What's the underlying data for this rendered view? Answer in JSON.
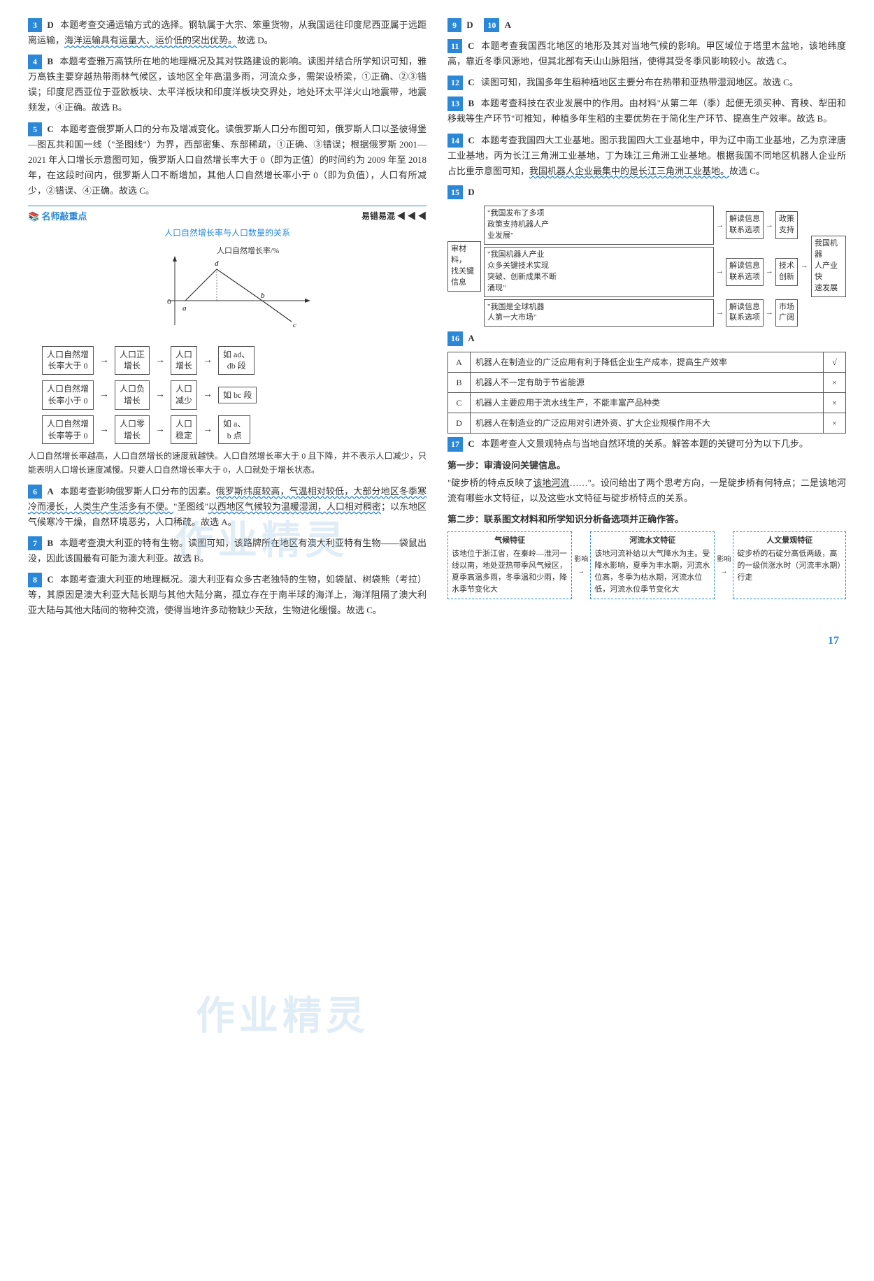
{
  "pageNumber": "17",
  "watermark": "作业精灵",
  "left": {
    "q3": {
      "num": "3",
      "ans": "D",
      "txt": "本题考查交通运输方式的选择。钢轨属于大宗、笨重货物，从我国运往印度尼西亚属于远距离运输，",
      "wavy": "海洋运输具有运量大、运价低的突出优势。",
      "tail": "故选 D。"
    },
    "q4": {
      "num": "4",
      "ans": "B",
      "txt": "本题考查雅万高铁所在地的地理概况及其对铁路建设的影响。读图并结合所学知识可知，雅万高铁主要穿越热带雨林气候区，该地区全年高温多雨，河流众多，需架设桥梁，①正确、②③错误；印度尼西亚位于亚欧板块、太平洋板块和印度洋板块交界处，地处环太平洋火山地震带，地震频发，④正确。故选 B。"
    },
    "q5": {
      "num": "5",
      "ans": "C",
      "txt": "本题考查俄罗斯人口的分布及增减变化。读俄罗斯人口分布图可知，俄罗斯人口以圣彼得堡—图瓦共和国一线（\"圣图线\"）为界，西部密集、东部稀疏，①正确、③错误；根据俄罗斯 2001—2021 年人口增长示意图可知，俄罗斯人口自然增长率大于 0（即为正值）的时间约为 2009 年至 2018 年，在这段时间内，俄罗斯人口不断增加，其他人口自然增长率小于 0（即为负值），人口有所减少，②错误、④正确。故选 C。"
    },
    "kp": {
      "icon": "📚",
      "title": "名师敲重点",
      "tag": "易错易混 ◀ ◀ ◀",
      "subtitle": "人口自然增长率与人口数量的关系",
      "ylabel": "人口自然增长率/%",
      "points": [
        "a",
        "b",
        "c",
        "d"
      ],
      "flowRows": [
        {
          "c1": "人口自然增\n长率大于 0",
          "c2": "人口正\n增长",
          "c3": "人口\n增长",
          "c4": "如 ad、\ndb 段"
        },
        {
          "c1": "人口自然增\n长率小于 0",
          "c2": "人口负\n增长",
          "c3": "人口\n减少",
          "c4": "如 bc 段"
        },
        {
          "c1": "人口自然增\n长率等于 0",
          "c2": "人口零\n增长",
          "c3": "人口\n稳定",
          "c4": "如 a、\nb 点"
        }
      ],
      "note": "人口自然增长率越高，人口自然增长的速度就越快。人口自然增长率大于 0 且下降，并不表示人口减少，只能表明人口增长速度减慢。只要人口自然增长率大于 0，人口就处于增长状态。"
    },
    "q6": {
      "num": "6",
      "ans": "A",
      "txt": "本题考查影响俄罗斯人口分布的因素。",
      "wavy1": "俄罗斯纬度较高，气温相对较低，大部分地区冬季寒冷而漫长，人类生产生活多有不便。",
      "mid": "\"圣图线\"",
      "wavy2": "以西地区气候较为温暖湿润，人口相对稠密",
      "tail": "；以东地区气候寒冷干燥，自然环境恶劣，人口稀疏。故选 A。"
    },
    "q7": {
      "num": "7",
      "ans": "B",
      "txt": "本题考查澳大利亚的特有生物。读图可知，该路牌所在地区有澳大利亚特有生物——袋鼠出没，因此该国最有可能为澳大利亚。故选 B。"
    },
    "q8": {
      "num": "8",
      "ans": "C",
      "txt": "本题考查澳大利亚的地理概况。澳大利亚有众多古老独特的生物，如袋鼠、树袋熊（考拉）等，其原因是澳大利亚大陆长期与其他大陆分离，孤立存在于南半球的海洋上，海洋阻隔了澳大利亚大陆与其他大陆间的物种交流，使得当地许多动物缺少天敌，生物进化缓慢。故选 C。"
    }
  },
  "right": {
    "q9": {
      "num": "9",
      "ans": "D"
    },
    "q10": {
      "num": "10",
      "ans": "A"
    },
    "q11": {
      "num": "11",
      "ans": "C",
      "txt": "本题考查我国西北地区的地形及其对当地气候的影响。甲区域位于塔里木盆地，该地纬度高，靠近冬季风源地，但其北部有天山山脉阻挡，使得其受冬季风影响较小。故选 C。"
    },
    "q12": {
      "num": "12",
      "ans": "C",
      "txt": "读图可知，我国多年生稻种植地区主要分布在热带和亚热带湿润地区。故选 C。"
    },
    "q13": {
      "num": "13",
      "ans": "B",
      "txt": "本题考查科技在农业发展中的作用。由材料\"从第二年（季）起便无须买种、育秧、犁田和移栽等生产环节\"可推知，种植多年生稻的主要优势在于简化生产环节、提高生产效率。故选 B。"
    },
    "q14": {
      "num": "14",
      "ans": "C",
      "txt": "本题考查我国四大工业基地。图示我国四大工业基地中，甲为辽中南工业基地，乙为京津唐工业基地，丙为长江三角洲工业基地，丁为珠江三角洲工业基地。根据我国不同地区机器人企业所占比重示意图可知，",
      "wavy": "我国机器人企业最集中的是长江三角洲工业基地。",
      "tail": "故选 C。"
    },
    "q15": {
      "num": "15",
      "ans": "D"
    },
    "diagram15": {
      "leftBox": "审材料，\n找关键\n信息",
      "rows": [
        {
          "quote": "\"我国发布了多项\n政策支持机器人产\n业发展\"",
          "mid": "解读信息\n联系选项",
          "r1": "政策\n支持"
        },
        {
          "quote": "\"我国机器人产业\n众多关键技术实现\n突破、创新成果不断\n涌现\"",
          "mid": "解读信息\n联系选项",
          "r1": "技术\n创新"
        },
        {
          "quote": "\"我国是全球机器\n人第一大市场\"",
          "mid": "解读信息\n联系选项",
          "r1": "市场\n广阔"
        }
      ],
      "finalBox": "我国机器\n人产业快\n速发展"
    },
    "q16": {
      "num": "16",
      "ans": "A"
    },
    "table16": [
      {
        "opt": "A",
        "txt": "机器人在制造业的广泛应用有利于降低企业生产成本，提高生产效率",
        "mark": "√"
      },
      {
        "opt": "B",
        "txt": "机器人不一定有助于节省能源",
        "mark": "×"
      },
      {
        "opt": "C",
        "txt": "机器人主要应用于流水线生产，不能丰富产品种类",
        "mark": "×"
      },
      {
        "opt": "D",
        "txt": "机器人在制造业的广泛应用对引进外资、扩大企业规模作用不大",
        "mark": "×"
      }
    ],
    "q17": {
      "num": "17",
      "ans": "C",
      "txt": "本题考查人文景观特点与当地自然环境的关系。解答本题的关键可分为以下几步。"
    },
    "step1": {
      "hdr": "第一步：审清设问关键信息。",
      "txt": "\"碇步桥的特点反映了",
      "u": "该地河流",
      "tail": "……\"。设问给出了两个思考方向，一是碇步桥有何特点；二是该地河流有哪些水文特征，以及这些水文特征与碇步桥特点的关系。"
    },
    "step2": {
      "hdr": "第二步：联系图文材料和所学知识分析备选项并正确作答。"
    },
    "flow17": {
      "b1": {
        "h": "气候特征",
        "t": "该地位于浙江省，在秦岭—淮河一线以南，地处亚热带季风气候区，夏季高温多雨，冬季温和少雨，降水季节变化大"
      },
      "a1": "影响",
      "b2": {
        "h": "河流水文特征",
        "t": "该地河流补给以大气降水为主。受降水影响，夏季为丰水期，河流水位高，冬季为枯水期，河流水位低，河流水位季节变化大"
      },
      "a2": "影响",
      "b3": {
        "h": "人文景观特征",
        "t": "碇步桥的石碇分高低两级，高的一级供涨水时（河流丰水期）行走"
      }
    }
  }
}
